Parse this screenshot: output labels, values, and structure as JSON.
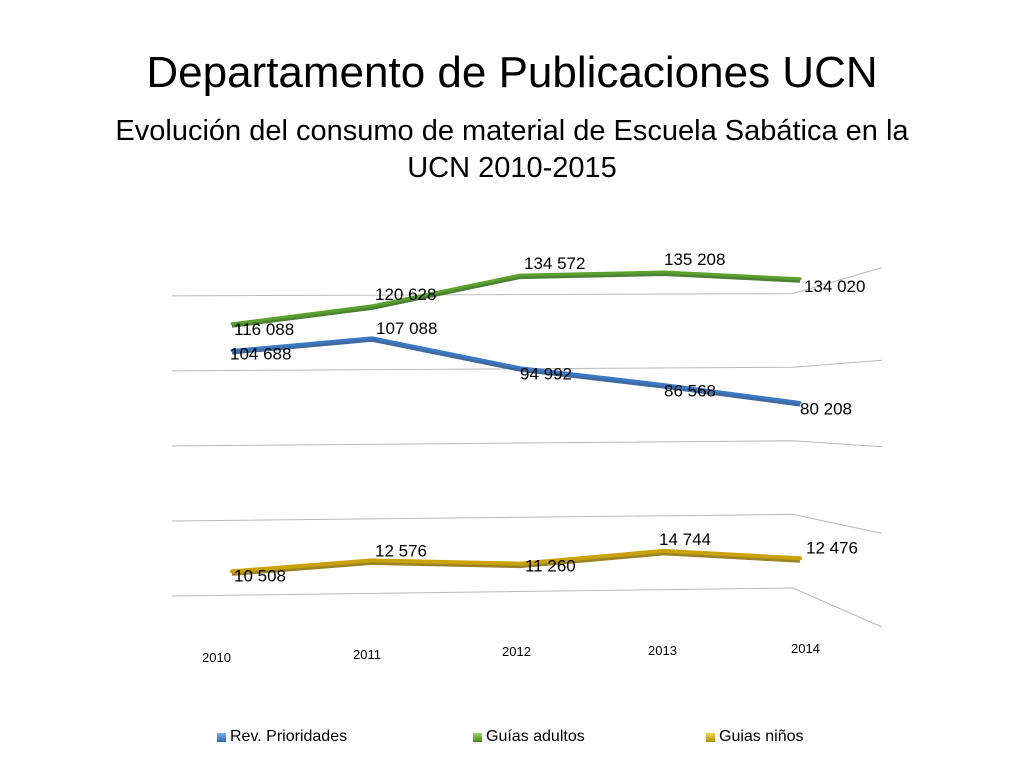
{
  "page": {
    "title": "Departamento de Publicaciones UCN",
    "subtitle": "Evolución del consumo de material de Escuela Sabática en la UCN 2010-2015"
  },
  "chart_data": {
    "type": "line",
    "title": "",
    "categories": [
      "2010",
      "2011",
      "2012",
      "2013",
      "2014"
    ],
    "ylim": [
      0,
      160000
    ],
    "grid": true,
    "legend": "bottom",
    "series": [
      {
        "name": "Rev. Prioridades",
        "color": "#3a78c3",
        "values": [
          104688,
          107088,
          94992,
          86568,
          80208
        ],
        "labels": [
          "104 688",
          "107 088",
          "94 992",
          "86 568",
          "80 208"
        ]
      },
      {
        "name": "Guías adultos",
        "color": "#5aa02c",
        "values": [
          116088,
          120628,
          134572,
          135208,
          134020
        ],
        "labels": [
          "116 088",
          "120 628",
          "134 572",
          "135 208",
          "134 020"
        ]
      },
      {
        "name": "Guias niños",
        "color": "#c9a20a",
        "values": [
          10508,
          12576,
          11260,
          14744,
          12476
        ],
        "labels": [
          "10 508",
          "12 576",
          "11 260",
          "14 744",
          "12 476"
        ]
      }
    ]
  }
}
